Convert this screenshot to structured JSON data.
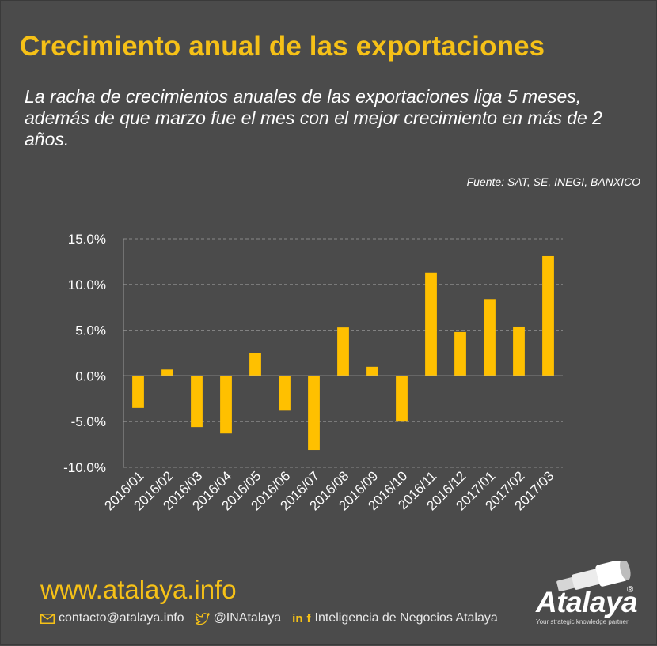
{
  "header": {
    "title": "Crecimiento anual de las exportaciones",
    "subtitle": "La racha de crecimientos anuales de las exportaciones liga 5 meses, además de que marzo fue el mes con el mejor crecimiento en más de 2 años.",
    "source": "Fuente: SAT, SE, INEGI, BANXICO"
  },
  "colors": {
    "accent": "#f6c117",
    "bar": "#ffc000",
    "background": "#4b4b4b",
    "grid": "#8a8a8a"
  },
  "chart_data": {
    "type": "bar",
    "title": "",
    "xlabel": "",
    "ylabel": "",
    "categories": [
      "2016/01",
      "2016/02",
      "2016/03",
      "2016/04",
      "2016/05",
      "2016/06",
      "2016/07",
      "2016/08",
      "2016/09",
      "2016/10",
      "2016/11",
      "2016/12",
      "2017/01",
      "2017/02",
      "2017/03"
    ],
    "values": [
      -3.5,
      0.7,
      -5.6,
      -6.3,
      2.5,
      -3.8,
      -8.1,
      5.3,
      1.0,
      -5.0,
      11.3,
      4.8,
      8.4,
      5.4,
      13.1
    ],
    "ylim": [
      -10,
      15
    ],
    "yticks": [
      15,
      10,
      5,
      0,
      -5,
      -10
    ],
    "ytick_labels": [
      "15.0%",
      "10.0%",
      "5.0%",
      "0.0%",
      "-5.0%",
      "-10.0%"
    ],
    "grid": true,
    "legend": "none"
  },
  "footer": {
    "url": "www.atalaya.info",
    "email": "contacto@atalaya.info",
    "twitter": "@INAtalaya",
    "social_name": "Inteligencia de Negocios Atalaya",
    "email_icon": "envelope-icon",
    "twitter_icon": "twitter-bird-icon",
    "linkedin_icon": "linkedin-icon",
    "facebook_icon": "facebook-icon",
    "linkedin_glyph": "in",
    "facebook_glyph": "f"
  },
  "logo": {
    "name": "Atalaya",
    "registered": "®",
    "tagline": "Your strategic knowledge partner",
    "icon": "telescope-icon"
  }
}
